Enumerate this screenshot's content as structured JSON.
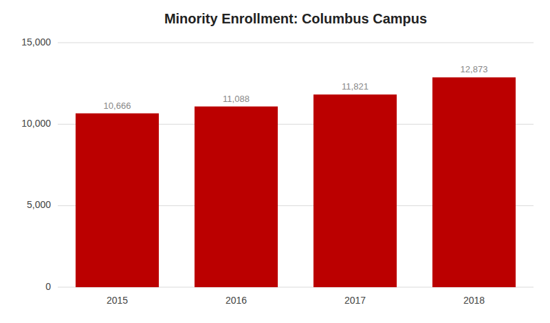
{
  "chart_data": {
    "type": "bar",
    "title": "Minority Enrollment: Columbus Campus",
    "categories": [
      "2015",
      "2016",
      "2017",
      "2018"
    ],
    "values": [
      10666,
      11088,
      11821,
      12873
    ],
    "value_labels": [
      "10,666",
      "11,088",
      "11,821",
      "12,873"
    ],
    "color": "#bb0000",
    "ylim": [
      0,
      15000
    ],
    "yticks": [
      0,
      {
        "value": 5000,
        "label": "5,000"
      },
      {
        "value": 10000,
        "label": "10,000"
      },
      {
        "value": 15000,
        "label": "15,000"
      }
    ],
    "grid": true,
    "data_labels": true
  }
}
